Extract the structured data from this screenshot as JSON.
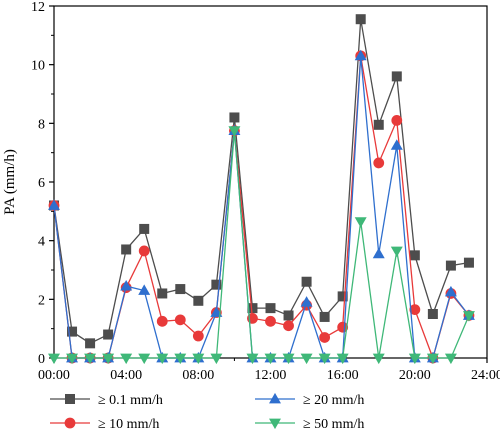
{
  "chart_data": {
    "type": "line",
    "title": "",
    "xlabel": "",
    "ylabel": "PA (mm/h)",
    "xlim": [
      0,
      24
    ],
    "ylim": [
      0,
      12
    ],
    "x_tick_labels": [
      "00:00",
      "04:00",
      "08:00",
      "12:00",
      "16:00",
      "20:00",
      "24:00"
    ],
    "x_tick_values": [
      0,
      4,
      8,
      12,
      16,
      20,
      24
    ],
    "y_tick_values": [
      0,
      2,
      4,
      6,
      8,
      10,
      12
    ],
    "grid": false,
    "legend_placement": "bottom",
    "x": [
      0,
      1,
      2,
      3,
      4,
      5,
      6,
      7,
      8,
      9,
      10,
      11,
      12,
      13,
      14,
      15,
      16,
      17,
      18,
      19,
      20,
      21,
      22,
      23
    ],
    "series": [
      {
        "name": "≥ 0.1 mm/h",
        "marker": "square",
        "color": "#4d4d4d",
        "values": [
          5.2,
          0.9,
          0.5,
          0.8,
          3.7,
          4.4,
          2.2,
          2.35,
          1.95,
          2.5,
          8.2,
          1.7,
          1.7,
          1.45,
          2.6,
          1.4,
          2.1,
          11.55,
          7.95,
          9.6,
          3.5,
          1.5,
          3.15,
          3.25
        ]
      },
      {
        "name": "≥ 10 mm/h",
        "marker": "circle",
        "color": "#e83a3a",
        "values": [
          5.2,
          0,
          0,
          0,
          2.4,
          3.65,
          1.25,
          1.3,
          0.75,
          1.55,
          7.75,
          1.35,
          1.25,
          1.1,
          1.8,
          0.7,
          1.05,
          10.3,
          6.65,
          8.1,
          1.65,
          0,
          2.2,
          1.45
        ]
      },
      {
        "name": "≥ 20 mm/h",
        "marker": "triangle-up",
        "color": "#2f6fce",
        "values": [
          5.2,
          0,
          0,
          0,
          2.45,
          2.3,
          0,
          0,
          0,
          1.55,
          7.75,
          0,
          0,
          0,
          1.9,
          0,
          0,
          10.3,
          3.55,
          7.25,
          0,
          0,
          2.25,
          1.45
        ]
      },
      {
        "name": "≥ 50 mm/h",
        "marker": "triangle-down",
        "color": "#3fb878",
        "values": [
          0,
          0,
          0,
          0,
          0,
          0,
          0,
          0,
          0,
          0,
          7.75,
          0,
          0,
          0,
          0,
          0,
          0,
          4.65,
          0,
          3.65,
          0,
          0,
          0,
          1.45
        ]
      }
    ]
  }
}
